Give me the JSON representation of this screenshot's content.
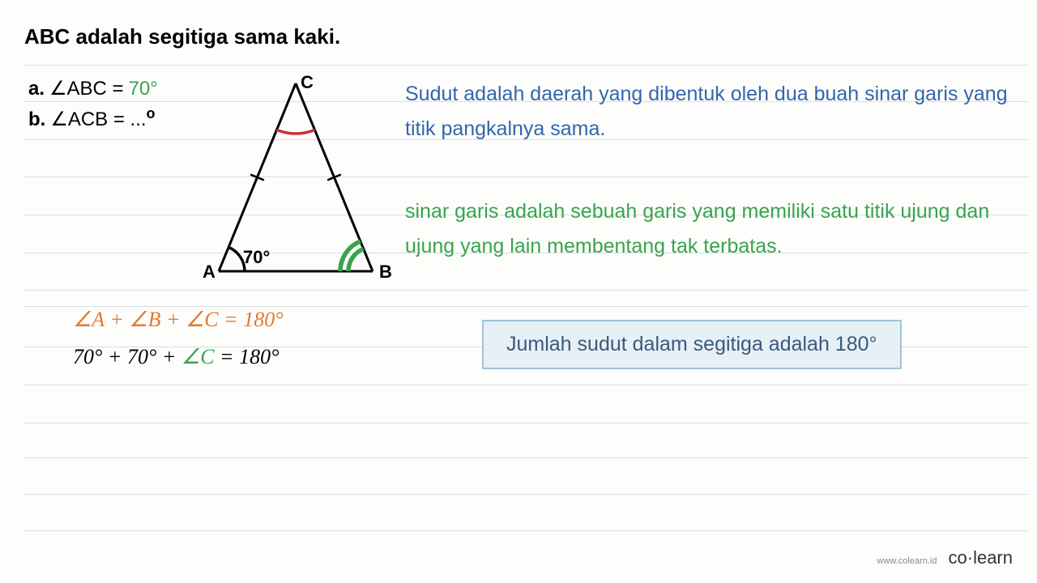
{
  "title": "ABC adalah segitiga sama kaki.",
  "problems": {
    "a_label": "a.",
    "a_angle": "ABC =",
    "a_value": "70°",
    "b_label": "b.",
    "b_angle": "ACB = ...",
    "b_degree": "o"
  },
  "triangle": {
    "vertex_A": "A",
    "vertex_B": "B",
    "vertex_C": "C",
    "angle_A_value": "70°",
    "points": {
      "A": [
        25,
        250
      ],
      "B": [
        215,
        250
      ],
      "C": [
        120,
        18
      ]
    },
    "colors": {
      "stroke": "#000000",
      "arc_A": "#000000",
      "arc_B": "#3aa34d",
      "arc_C": "#cc3333",
      "tick": "#000000"
    },
    "stroke_width": 3,
    "arc_width": 3.5,
    "tick_width": 2.5,
    "font_label": "22",
    "font_angle": "22"
  },
  "definitions": {
    "blue": "Sudut adalah daerah yang dibentuk oleh dua buah sinar garis yang titik pangkalnya sama.",
    "green": "sinar garis adalah sebuah garis yang memiliki satu titik ujung dan ujung yang lain membentang tak terbatas."
  },
  "equations": {
    "line1": {
      "full": "∠A + ∠B + ∠C = 180°"
    },
    "line2": {
      "left": "70° + 70° + ",
      "mid": "∠C",
      "right": " = 180°"
    }
  },
  "callout": "Jumlah sudut dalam segitiga adalah 180°",
  "footer": {
    "url": "www.colearn.id",
    "logo_left": "co",
    "logo_dot": "·",
    "logo_right": "learn"
  },
  "ruled_line_positions": [
    80,
    125,
    172,
    218,
    265,
    312,
    358,
    378,
    428,
    475,
    522,
    565,
    610,
    655
  ],
  "colors": {
    "blue_text": "#3366aa",
    "green_text": "#3aa34d",
    "orange_text": "#e17a2f",
    "callout_bg": "#e6f0f6",
    "callout_border": "#9fc5d9",
    "callout_text": "#3a5a7a",
    "ruled": "#d6dfe6"
  }
}
